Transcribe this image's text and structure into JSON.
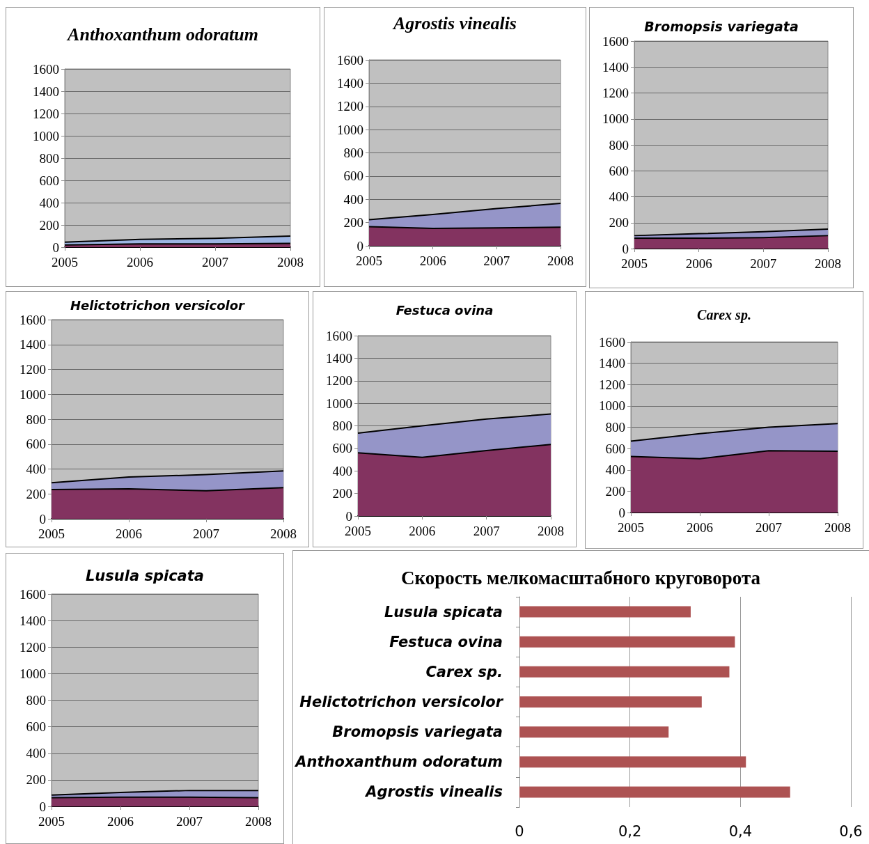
{
  "chart_data": [
    {
      "type": "area",
      "stacked": true,
      "title": "Anthoxanthum odoratum",
      "categories": [
        "2005",
        "2006",
        "2007",
        "2008"
      ],
      "ylim": [
        0,
        1600
      ],
      "yticks": [
        0,
        200,
        400,
        600,
        800,
        1000,
        1200,
        1400,
        1600
      ],
      "grid": "y",
      "series": [
        {
          "color": "#833360",
          "values": [
            20,
            30,
            30,
            35
          ]
        },
        {
          "color": "#9db5e3",
          "values": [
            25,
            40,
            50,
            65
          ]
        }
      ]
    },
    {
      "type": "area",
      "stacked": true,
      "title": "Agrostis vinealis",
      "categories": [
        "2005",
        "2006",
        "2007",
        "2008"
      ],
      "ylim": [
        0,
        1600
      ],
      "yticks": [
        0,
        200,
        400,
        600,
        800,
        1000,
        1200,
        1400,
        1600
      ],
      "grid": "y",
      "series": [
        {
          "color": "#833360",
          "values": [
            165,
            150,
            155,
            160
          ]
        },
        {
          "color": "#9595c8",
          "values": [
            60,
            120,
            165,
            205
          ]
        }
      ]
    },
    {
      "type": "area",
      "stacked": true,
      "title": "Bromopsis variegata",
      "categories": [
        "2005",
        "2006",
        "2007",
        "2008"
      ],
      "ylim": [
        0,
        1600
      ],
      "yticks": [
        0,
        200,
        400,
        600,
        800,
        1000,
        1200,
        1400,
        1600
      ],
      "grid": "y",
      "series": [
        {
          "color": "#833360",
          "values": [
            80,
            80,
            85,
            100
          ]
        },
        {
          "color": "#9595c8",
          "values": [
            20,
            35,
            45,
            50
          ]
        }
      ]
    },
    {
      "type": "area",
      "stacked": true,
      "title": "Helictotrichon versicolor",
      "categories": [
        "2005",
        "2006",
        "2007",
        "2008"
      ],
      "ylim": [
        0,
        1600
      ],
      "yticks": [
        0,
        200,
        400,
        600,
        800,
        1000,
        1200,
        1400,
        1600
      ],
      "grid": "y",
      "series": [
        {
          "color": "#833360",
          "values": [
            235,
            240,
            225,
            250
          ]
        },
        {
          "color": "#9595c8",
          "values": [
            55,
            95,
            130,
            135
          ]
        }
      ]
    },
    {
      "type": "area",
      "stacked": true,
      "title": "Festuca ovina",
      "categories": [
        "2005",
        "2006",
        "2007",
        "2008"
      ],
      "ylim": [
        0,
        1600
      ],
      "yticks": [
        0,
        200,
        400,
        600,
        800,
        1000,
        1200,
        1400,
        1600
      ],
      "grid": "y",
      "series": [
        {
          "color": "#833360",
          "values": [
            560,
            520,
            580,
            635
          ]
        },
        {
          "color": "#9595c8",
          "values": [
            175,
            280,
            280,
            270
          ]
        }
      ]
    },
    {
      "type": "area",
      "stacked": true,
      "title": "Carex sp.",
      "categories": [
        "2005",
        "2006",
        "2007",
        "2008"
      ],
      "ylim": [
        0,
        1600
      ],
      "yticks": [
        0,
        200,
        400,
        600,
        800,
        1000,
        1200,
        1400,
        1600
      ],
      "grid": "y",
      "series": [
        {
          "color": "#833360",
          "values": [
            525,
            505,
            580,
            575
          ]
        },
        {
          "color": "#9595c8",
          "values": [
            145,
            235,
            220,
            260
          ]
        }
      ]
    },
    {
      "type": "area",
      "stacked": true,
      "title": "Lusula spicata",
      "categories": [
        "2005",
        "2006",
        "2007",
        "2008"
      ],
      "ylim": [
        0,
        1600
      ],
      "yticks": [
        0,
        200,
        400,
        600,
        800,
        1000,
        1200,
        1400,
        1600
      ],
      "grid": "y",
      "series": [
        {
          "color": "#833360",
          "values": [
            65,
            70,
            70,
            65
          ]
        },
        {
          "color": "#9595c8",
          "values": [
            20,
            35,
            50,
            55
          ]
        }
      ]
    },
    {
      "type": "bar",
      "orientation": "horizontal",
      "title": "Скорость мелкомасштабного круговорота",
      "categories": [
        "Lusula spicata",
        "Festuca ovina",
        "Carex sp.",
        "Helictotrichon versicolor",
        "Bromopsis variegata",
        "Anthoxanthum odoratum",
        "Agrostis vinealis"
      ],
      "values": [
        0.31,
        0.39,
        0.38,
        0.33,
        0.27,
        0.41,
        0.49
      ],
      "color": "#ad5252",
      "xlim": [
        0,
        0.6
      ],
      "xticks": [
        0,
        {
          "value": 0.2,
          "label": "0,2"
        },
        {
          "value": 0.4,
          "label": "0,4"
        },
        {
          "value": 0.6,
          "label": "0,6"
        }
      ],
      "grid": "x"
    }
  ]
}
